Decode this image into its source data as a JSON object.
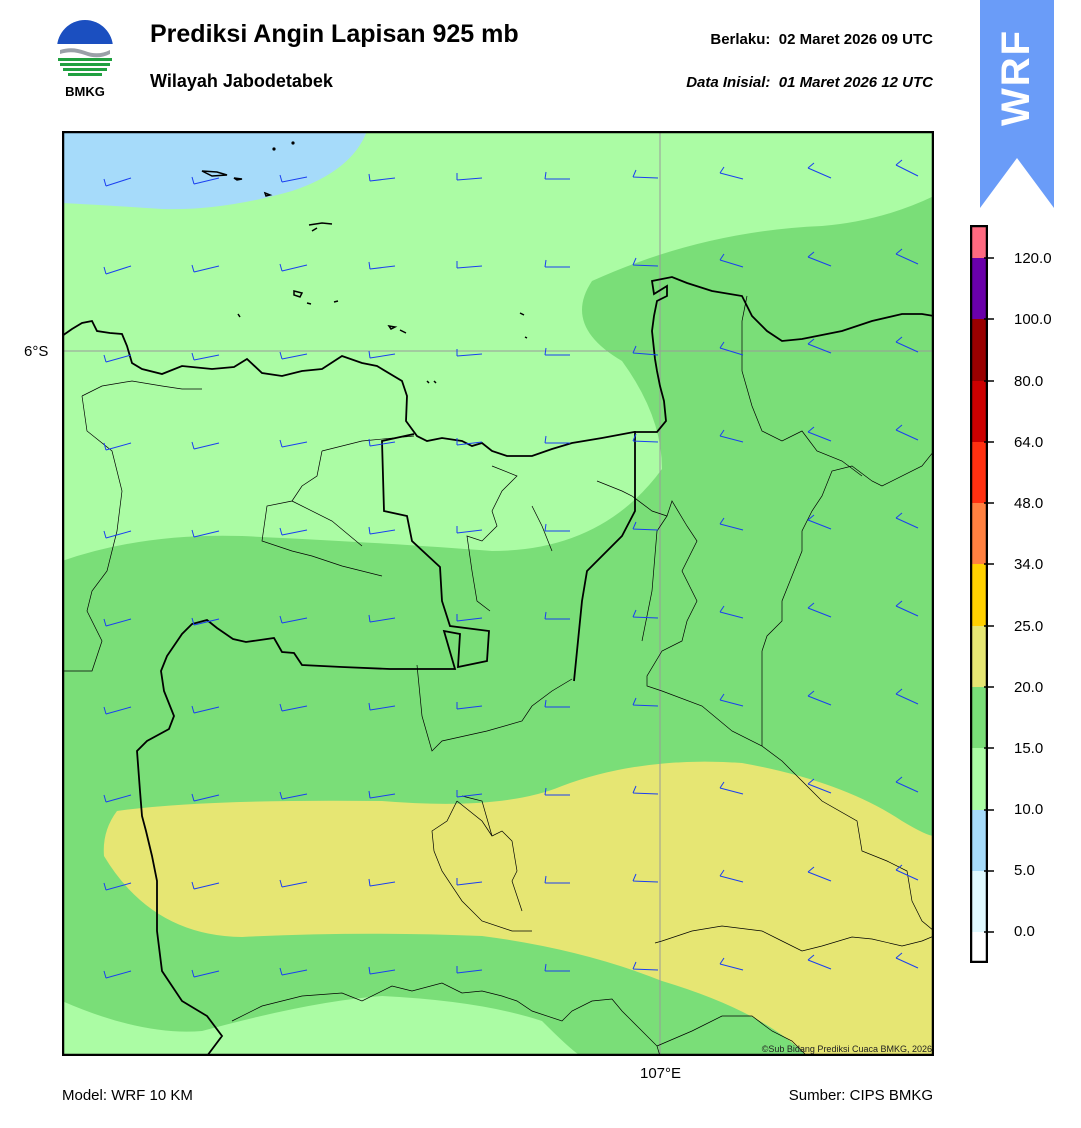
{
  "header": {
    "logo_text": "BMKG",
    "title": "Prediksi Angin Lapisan 925 mb",
    "subtitle": "Wilayah Jabodetabek",
    "valid_label": "Berlaku:",
    "valid_time": "02 Maret 2026 09 UTC",
    "init_label": "Data Inisial:",
    "init_time": "01 Maret 2026 12 UTC",
    "badge": "WRF"
  },
  "map": {
    "lat_label": "6°S",
    "lon_label": "107°E",
    "copyright": "©Sub Bidang Prediksi Cuaca BMKG, 2026",
    "colors": {
      "band_5_10": "#a6dbfa",
      "band_10_15": "#abfca4",
      "band_15_20": "#7ade78",
      "band_20_25": "#e6e673",
      "wind_barb": "#1a3ff0",
      "coast": "#000000"
    }
  },
  "colorbar": {
    "labels": [
      "120.0",
      "100.0",
      "80.0",
      "64.0",
      "48.0",
      "34.0",
      "25.0",
      "20.0",
      "15.0",
      "10.0",
      "5.0",
      "0.0"
    ],
    "colors": [
      "#ffffff",
      "#e0f9ff",
      "#a6dbfa",
      "#abfca4",
      "#7ade78",
      "#e6e673",
      "#ffd000",
      "#ff8040",
      "#ff3010",
      "#cc0000",
      "#990000",
      "#6a00aa",
      "#ff6a80"
    ]
  },
  "footer": {
    "model": "Model: WRF 10 KM",
    "source": "Sumber: CIPS BMKG"
  }
}
